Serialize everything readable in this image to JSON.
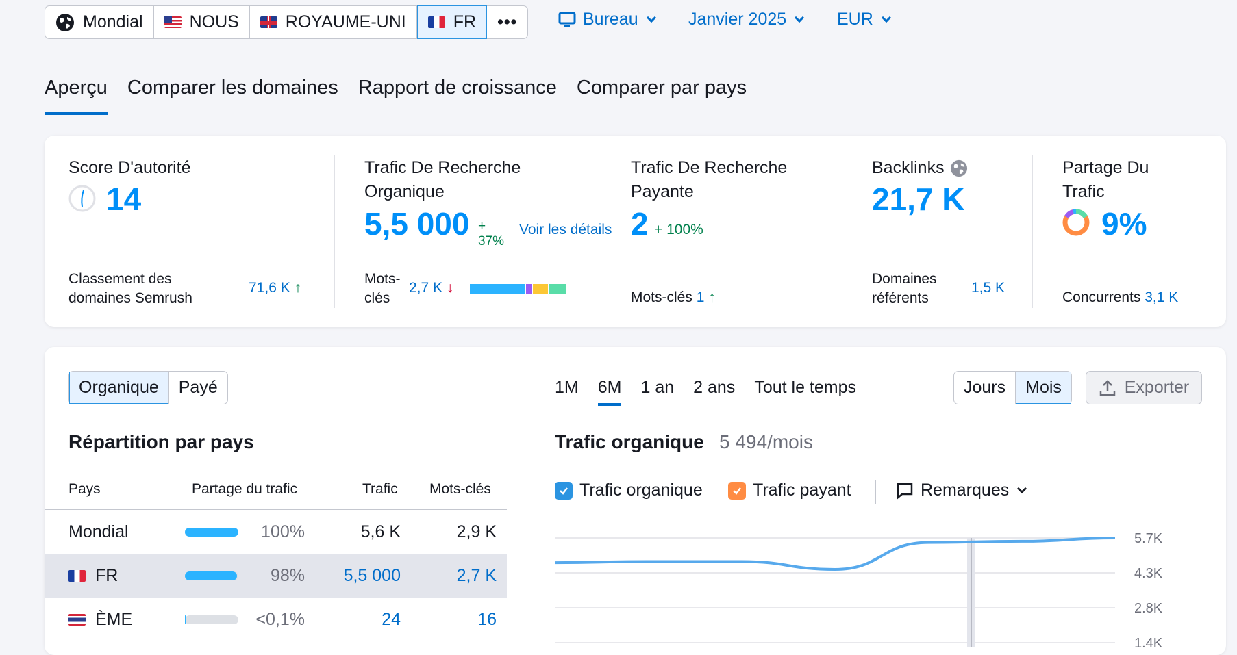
{
  "databases": [
    {
      "label": "Mondial",
      "icon": "globe-icon"
    },
    {
      "label": "NOUS",
      "icon": "flag-us"
    },
    {
      "label": "ROYAUME-UNI",
      "icon": "flag-uk"
    },
    {
      "label": "FR",
      "icon": "flag-fr",
      "active": true
    },
    {
      "label": "•••",
      "icon": "more-icon"
    }
  ],
  "device": "Bureau",
  "date": "Janvier 2025",
  "currency": "EUR",
  "tabs": [
    "Aperçu",
    "Comparer les domaines",
    "Rapport de croissance",
    "Comparer par pays"
  ],
  "metrics": {
    "authority": {
      "label": "Score D'autorité",
      "value": "14",
      "sub_label": "Classement des domaines Semrush",
      "sub_value": "71,6 K",
      "sub_arrow": "↑"
    },
    "organic": {
      "label": "Trafic De Recherche Organique",
      "value": "5,5 000",
      "change": "+ 37%",
      "details": "Voir les détails",
      "kw_label": "Mots-clés",
      "kw_value": "2,7 K",
      "kw_arrow": "↓"
    },
    "paid": {
      "label": "Trafic De Recherche Payante",
      "value": "2",
      "change": "+ 100%",
      "kw_label": "Mots-clés",
      "kw_value": "1",
      "kw_arrow": "↑"
    },
    "backlinks": {
      "label": "Backlinks",
      "value": "21,7 K",
      "sub_label": "Domaines référents",
      "sub_value": "1,5 K"
    },
    "share": {
      "label": "Partage Du Trafic",
      "value": "9%",
      "sub_label": "Concurrents",
      "sub_value": "3,1 K"
    }
  },
  "traffic_type": {
    "organic": "Organique",
    "paid": "Payé"
  },
  "periods": [
    "1M",
    "6M",
    "1 an",
    "2 ans",
    "Tout le temps"
  ],
  "granularity": {
    "days": "Jours",
    "months": "Mois"
  },
  "export_label": "Exporter",
  "country_section": {
    "title": "Répartition par pays",
    "headers": {
      "country": "Pays",
      "share": "Partage du trafic",
      "traffic": "Trafic",
      "keywords": "Mots-clés"
    },
    "rows": [
      {
        "country": "Mondial",
        "flag": "",
        "share": "100%",
        "share_value": 100,
        "traffic": "5,6 K",
        "keywords": "2,9 K"
      },
      {
        "country": "FR",
        "flag": "fr",
        "share": "98%",
        "share_value": 98,
        "traffic": "5,5 000",
        "keywords": "2,7 K"
      },
      {
        "country": "ÈME",
        "flag": "th",
        "share": "<0,1%",
        "share_value": 0.1,
        "traffic": "24",
        "keywords": "16"
      }
    ]
  },
  "chart_section": {
    "title": "Trafic organique",
    "subtitle": "5 494/mois",
    "legend": {
      "organic": "Trafic organique",
      "paid": "Trafic payant",
      "notes": "Remarques"
    },
    "colors": {
      "organic": "#57a9ec",
      "paid": "#ff8c43",
      "checkbox_blue": "#2b94e1"
    }
  },
  "chart_data": {
    "type": "line",
    "title": "Trafic organique",
    "y_ticks": [
      "5.7K",
      "4.3K",
      "2.8K",
      "1.4K"
    ],
    "ylim": [
      0,
      5700
    ],
    "series": [
      {
        "name": "Trafic organique",
        "values": [
          4600,
          4650,
          4650,
          4300,
          5500,
          5550,
          5700
        ]
      }
    ]
  }
}
